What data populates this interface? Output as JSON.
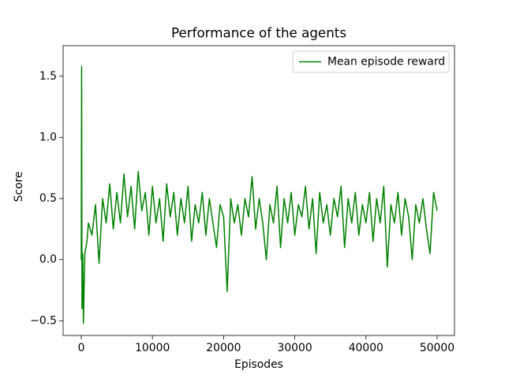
{
  "chart_data": {
    "type": "line",
    "title": "Performance of the agents",
    "xlabel": "Episodes",
    "ylabel": "Score",
    "x": [
      0,
      50,
      100,
      200,
      300,
      500,
      800,
      1000,
      1500,
      2000,
      2500,
      3000,
      3500,
      4000,
      4500,
      5000,
      5500,
      6000,
      6500,
      7000,
      7500,
      8000,
      8500,
      9000,
      9500,
      10000,
      10500,
      11000,
      11500,
      12000,
      12500,
      13000,
      13500,
      14000,
      14500,
      15000,
      15500,
      16000,
      16500,
      17000,
      17500,
      18000,
      18500,
      19000,
      19500,
      20000,
      20500,
      21000,
      21500,
      22000,
      22500,
      23000,
      23500,
      24000,
      24500,
      25000,
      25500,
      26000,
      26500,
      27000,
      27500,
      28000,
      28500,
      29000,
      29500,
      30000,
      30500,
      31000,
      31500,
      32000,
      32500,
      33000,
      33500,
      34000,
      34500,
      35000,
      35500,
      36000,
      36500,
      37000,
      37500,
      38000,
      38500,
      39000,
      39500,
      40000,
      40500,
      41000,
      41500,
      42000,
      42500,
      43000,
      43500,
      44000,
      44500,
      45000,
      45500,
      46000,
      46500,
      47000,
      47500,
      48000,
      48500,
      49000,
      49500,
      50000
    ],
    "series": [
      {
        "name": "Mean episode reward",
        "color": "#008000",
        "values": [
          0.0,
          1.58,
          -0.4,
          0.05,
          -0.52,
          0.05,
          0.15,
          0.3,
          0.2,
          0.45,
          -0.03,
          0.5,
          0.3,
          0.62,
          0.25,
          0.55,
          0.3,
          0.7,
          0.35,
          0.6,
          0.25,
          0.72,
          0.4,
          0.55,
          0.2,
          0.6,
          0.3,
          0.5,
          0.15,
          0.62,
          0.35,
          0.55,
          0.2,
          0.5,
          0.3,
          0.6,
          0.15,
          0.45,
          0.3,
          0.55,
          0.2,
          0.5,
          0.3,
          0.1,
          0.45,
          0.35,
          -0.26,
          0.5,
          0.3,
          0.45,
          0.2,
          0.5,
          0.35,
          0.68,
          0.25,
          0.5,
          0.3,
          0.0,
          0.45,
          0.3,
          0.6,
          0.1,
          0.5,
          0.3,
          0.55,
          0.2,
          0.45,
          0.35,
          0.6,
          0.25,
          0.5,
          0.05,
          0.55,
          0.3,
          0.45,
          0.2,
          0.5,
          0.35,
          0.6,
          0.1,
          0.5,
          0.3,
          0.55,
          0.2,
          0.45,
          0.3,
          0.55,
          0.15,
          0.5,
          0.3,
          0.6,
          -0.06,
          0.45,
          0.3,
          0.55,
          0.2,
          0.5,
          0.35,
          0.0,
          0.45,
          0.3,
          0.5,
          0.25,
          0.05,
          0.55,
          0.4
        ]
      }
    ],
    "xlim": [
      -2550,
      52440
    ],
    "ylim": [
      -0.62,
      1.75
    ],
    "xticks": [
      0,
      10000,
      20000,
      30000,
      40000,
      50000
    ],
    "yticks": [
      {
        "value": -0.5,
        "label": "−0.5"
      },
      {
        "value": 0,
        "label": "0.0"
      },
      0.5,
      {
        "value": 1,
        "label": "1.0"
      },
      1.5
    ],
    "legend": "upper right"
  }
}
